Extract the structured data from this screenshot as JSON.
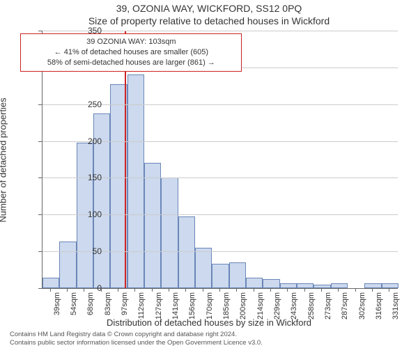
{
  "title": "39, OZONIA WAY, WICKFORD, SS12 0PQ",
  "subtitle": "Size of property relative to detached houses in Wickford",
  "ylabel": "Number of detached properties",
  "xlabel": "Distribution of detached houses by size in Wickford",
  "footer_line1": "Contains HM Land Registry data © Crown copyright and database right 2024.",
  "footer_line2": "Contains public sector information licensed under the Open Government Licence v3.0.",
  "chart": {
    "type": "histogram",
    "bar_fill": "#ccd9ee",
    "bar_border": "#6a86b8",
    "grid_color": "#cccccc",
    "axis_color": "#666666",
    "background_color": "#ffffff",
    "ref_line_color": "#cc2222",
    "ref_value_x": 103,
    "x_min": 32,
    "x_max": 338,
    "y_min": 0,
    "y_max": 350,
    "y_tick_step": 50,
    "x_tick_start": 39,
    "x_tick_step": 14.6,
    "x_tick_suffix": "sqm",
    "x_tick_count": 21,
    "bin_width": 14.6,
    "bins": [
      {
        "start": 32,
        "count": 14
      },
      {
        "start": 46.6,
        "count": 63
      },
      {
        "start": 61.2,
        "count": 198
      },
      {
        "start": 75.8,
        "count": 237
      },
      {
        "start": 90.4,
        "count": 277
      },
      {
        "start": 105,
        "count": 290
      },
      {
        "start": 119.6,
        "count": 170
      },
      {
        "start": 134.2,
        "count": 150
      },
      {
        "start": 148.8,
        "count": 97
      },
      {
        "start": 163.4,
        "count": 55
      },
      {
        "start": 178,
        "count": 33
      },
      {
        "start": 192.6,
        "count": 35
      },
      {
        "start": 207.2,
        "count": 14
      },
      {
        "start": 221.8,
        "count": 12
      },
      {
        "start": 236.4,
        "count": 7
      },
      {
        "start": 251,
        "count": 7
      },
      {
        "start": 265.6,
        "count": 5
      },
      {
        "start": 280.2,
        "count": 7
      },
      {
        "start": 294.8,
        "count": 0
      },
      {
        "start": 309.4,
        "count": 7
      },
      {
        "start": 324,
        "count": 7
      }
    ]
  },
  "infobox": {
    "line1": "39 OZONIA WAY: 103sqm",
    "line2": "← 41% of detached houses are smaller (605)",
    "line3": "58% of semi-detached houses are larger (861) →"
  },
  "title_fontsize": 14,
  "label_fontsize": 13,
  "tick_fontsize": 12,
  "xtick_fontsize": 11,
  "infobox_fontsize": 11,
  "footer_fontsize": 9.5
}
